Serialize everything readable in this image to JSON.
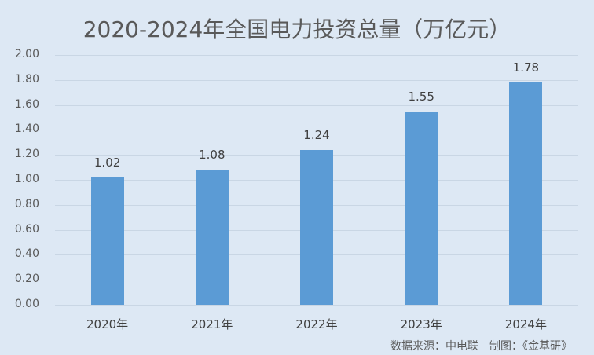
{
  "chart_data": {
    "type": "bar",
    "title": "2020-2024年全国电力投资总量（万亿元）",
    "categories": [
      "2020年",
      "2021年",
      "2022年",
      "2023年",
      "2024年"
    ],
    "values": [
      1.02,
      1.08,
      1.24,
      1.55,
      1.78
    ],
    "value_labels": [
      "1.02",
      "1.08",
      "1.24",
      "1.55",
      "1.78"
    ],
    "xlabel": "",
    "ylabel": "",
    "ylim": [
      0,
      2.0
    ],
    "yticks": [
      "0.00",
      "0.20",
      "0.40",
      "0.60",
      "0.80",
      "1.00",
      "1.20",
      "1.40",
      "1.60",
      "1.80",
      "2.00"
    ],
    "grid": true,
    "legend": "none",
    "bar_color": "#5b9bd5",
    "background": "#dde8f4"
  },
  "footer": {
    "source": "数据来源：中电联　制图：《金基研》"
  }
}
